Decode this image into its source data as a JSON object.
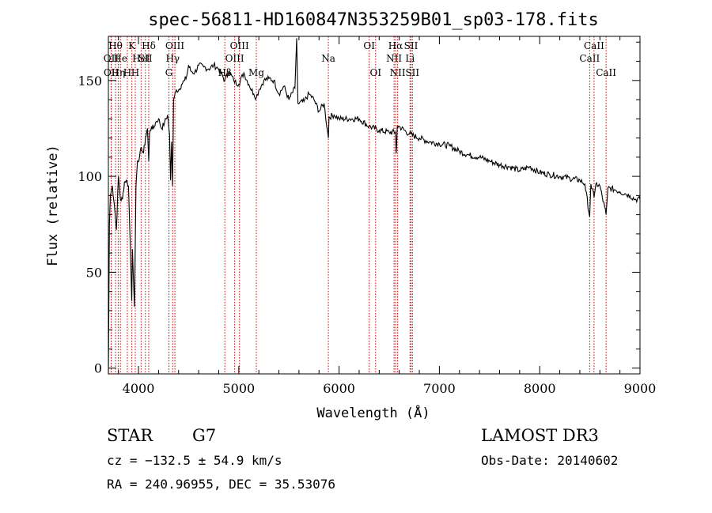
{
  "chart_data": {
    "type": "line",
    "title": "spec-56811-HD160847N353259B01_sp03-178.fits",
    "xlabel": "Wavelength (Å)",
    "ylabel": "Flux (relative)",
    "xlim": [
      3700,
      9000
    ],
    "ylim": [
      -3,
      173
    ],
    "x_ticks": [
      4000,
      5000,
      6000,
      7000,
      8000,
      9000
    ],
    "y_ticks": [
      0,
      50,
      100,
      150
    ],
    "series": [
      {
        "name": "spectrum",
        "x": [
          3700,
          3710,
          3720,
          3740,
          3760,
          3780,
          3800,
          3820,
          3840,
          3860,
          3880,
          3900,
          3920,
          3933,
          3940,
          3950,
          3960,
          3968,
          3975,
          3990,
          4010,
          4030,
          4050,
          4070,
          4090,
          4102,
          4110,
          4130,
          4150,
          4170,
          4200,
          4230,
          4260,
          4290,
          4310,
          4320,
          4330,
          4340,
          4345,
          4350,
          4360,
          4380,
          4400,
          4430,
          4460,
          4480,
          4500,
          4520,
          4560,
          4600,
          4650,
          4700,
          4750,
          4800,
          4861,
          4900,
          4950,
          5000,
          5050,
          5100,
          5150,
          5175,
          5200,
          5250,
          5300,
          5350,
          5400,
          5450,
          5500,
          5560,
          5577,
          5590,
          5650,
          5700,
          5750,
          5800,
          5850,
          5893,
          5900,
          5950,
          6000,
          6100,
          6200,
          6300,
          6400,
          6500,
          6563,
          6570,
          6580,
          6600,
          6700,
          6800,
          6900,
          7000,
          7100,
          7200,
          7300,
          7400,
          7500,
          7600,
          7700,
          7800,
          7900,
          8000,
          8100,
          8200,
          8300,
          8400,
          8450,
          8498,
          8510,
          8542,
          8560,
          8600,
          8662,
          8680,
          8750,
          8800,
          8850,
          8900,
          8950,
          9000
        ],
        "values": [
          -3,
          75,
          90,
          95,
          85,
          72,
          100,
          88,
          88,
          97,
          98,
          95,
          62,
          35,
          62,
          46,
          32,
          65,
          95,
          108,
          110,
          115,
          112,
          120,
          125,
          108,
          122,
          126,
          125,
          128,
          130,
          125,
          128,
          132,
          122,
          98,
          118,
          95,
          118,
          140,
          142,
          145,
          145,
          148,
          150,
          152,
          158,
          155,
          154,
          158,
          157,
          156,
          158,
          156,
          150,
          155,
          150,
          148,
          154,
          148,
          143,
          141,
          145,
          150,
          151,
          150,
          143,
          147,
          140,
          146,
          172,
          138,
          139,
          143,
          140,
          134,
          138,
          120,
          131,
          132,
          130,
          130,
          130,
          126,
          124,
          123,
          123,
          112,
          126,
          126,
          122,
          120,
          118,
          117,
          116,
          113,
          111,
          110,
          108,
          106,
          105,
          103,
          105,
          102,
          101,
          100,
          99,
          98,
          96,
          79,
          96,
          89,
          96,
          95,
          80,
          94,
          93,
          92,
          91,
          90,
          88,
          88
        ]
      }
    ],
    "lines": [
      {
        "wavelength": 3727,
        "label": "OII",
        "row": 2
      },
      {
        "wavelength": 3729,
        "label": "OII",
        "row": 3
      },
      {
        "wavelength": 3771,
        "label": "Hθ",
        "row": 1
      },
      {
        "wavelength": 3798,
        "label": "Hη",
        "row": 3
      },
      {
        "wavelength": 3820,
        "label": "He",
        "row": 2
      },
      {
        "wavelength": 3889,
        "label": "H",
        "row": 3
      },
      {
        "wavelength": 3934,
        "label": "K",
        "row": 1
      },
      {
        "wavelength": 3968,
        "label": "H",
        "row": 3
      },
      {
        "wavelength": 4026,
        "label": "HeI",
        "row": 2
      },
      {
        "wavelength": 4069,
        "label": "SII",
        "row": 2
      },
      {
        "wavelength": 4102,
        "label": "Hδ",
        "row": 1
      },
      {
        "wavelength": 4304,
        "label": "G",
        "row": 3
      },
      {
        "wavelength": 4341,
        "label": "Hγ",
        "row": 2
      },
      {
        "wavelength": 4363,
        "label": "OIII",
        "row": 1
      },
      {
        "wavelength": 4861,
        "label": "Hβ",
        "row": 3
      },
      {
        "wavelength": 4959,
        "label": "OIII",
        "row": 2
      },
      {
        "wavelength": 5007,
        "label": "OIII",
        "row": 1
      },
      {
        "wavelength": 5175,
        "label": "Mg",
        "row": 3
      },
      {
        "wavelength": 5893,
        "label": "Na",
        "row": 2
      },
      {
        "wavelength": 6300,
        "label": "OI",
        "row": 1
      },
      {
        "wavelength": 6364,
        "label": "OI",
        "row": 3
      },
      {
        "wavelength": 6548,
        "label": "NII",
        "row": 2
      },
      {
        "wavelength": 6563,
        "label": "Hα",
        "row": 1
      },
      {
        "wavelength": 6584,
        "label": "NII",
        "row": 3
      },
      {
        "wavelength": 6707,
        "label": "Li",
        "row": 2
      },
      {
        "wavelength": 6717,
        "label": "SII",
        "row": 1
      },
      {
        "wavelength": 6731,
        "label": "SII",
        "row": 3
      },
      {
        "wavelength": 8498,
        "label": "CaII",
        "row": 2
      },
      {
        "wavelength": 8542,
        "label": "CaII",
        "row": 1
      },
      {
        "wavelength": 8662,
        "label": "CaII",
        "row": 3
      }
    ],
    "colors": {
      "spectrum": "#000000",
      "line_marker": "#cc0000",
      "axis": "#000000"
    }
  },
  "info": {
    "object_class": "STAR",
    "subclass": "G7",
    "survey": "LAMOST DR3",
    "cz": "cz = −132.5 ± 54.9 km/s",
    "obs_date": "Obs-Date: 20140602",
    "coords": "RA = 240.96955, DEC =  35.53076"
  }
}
